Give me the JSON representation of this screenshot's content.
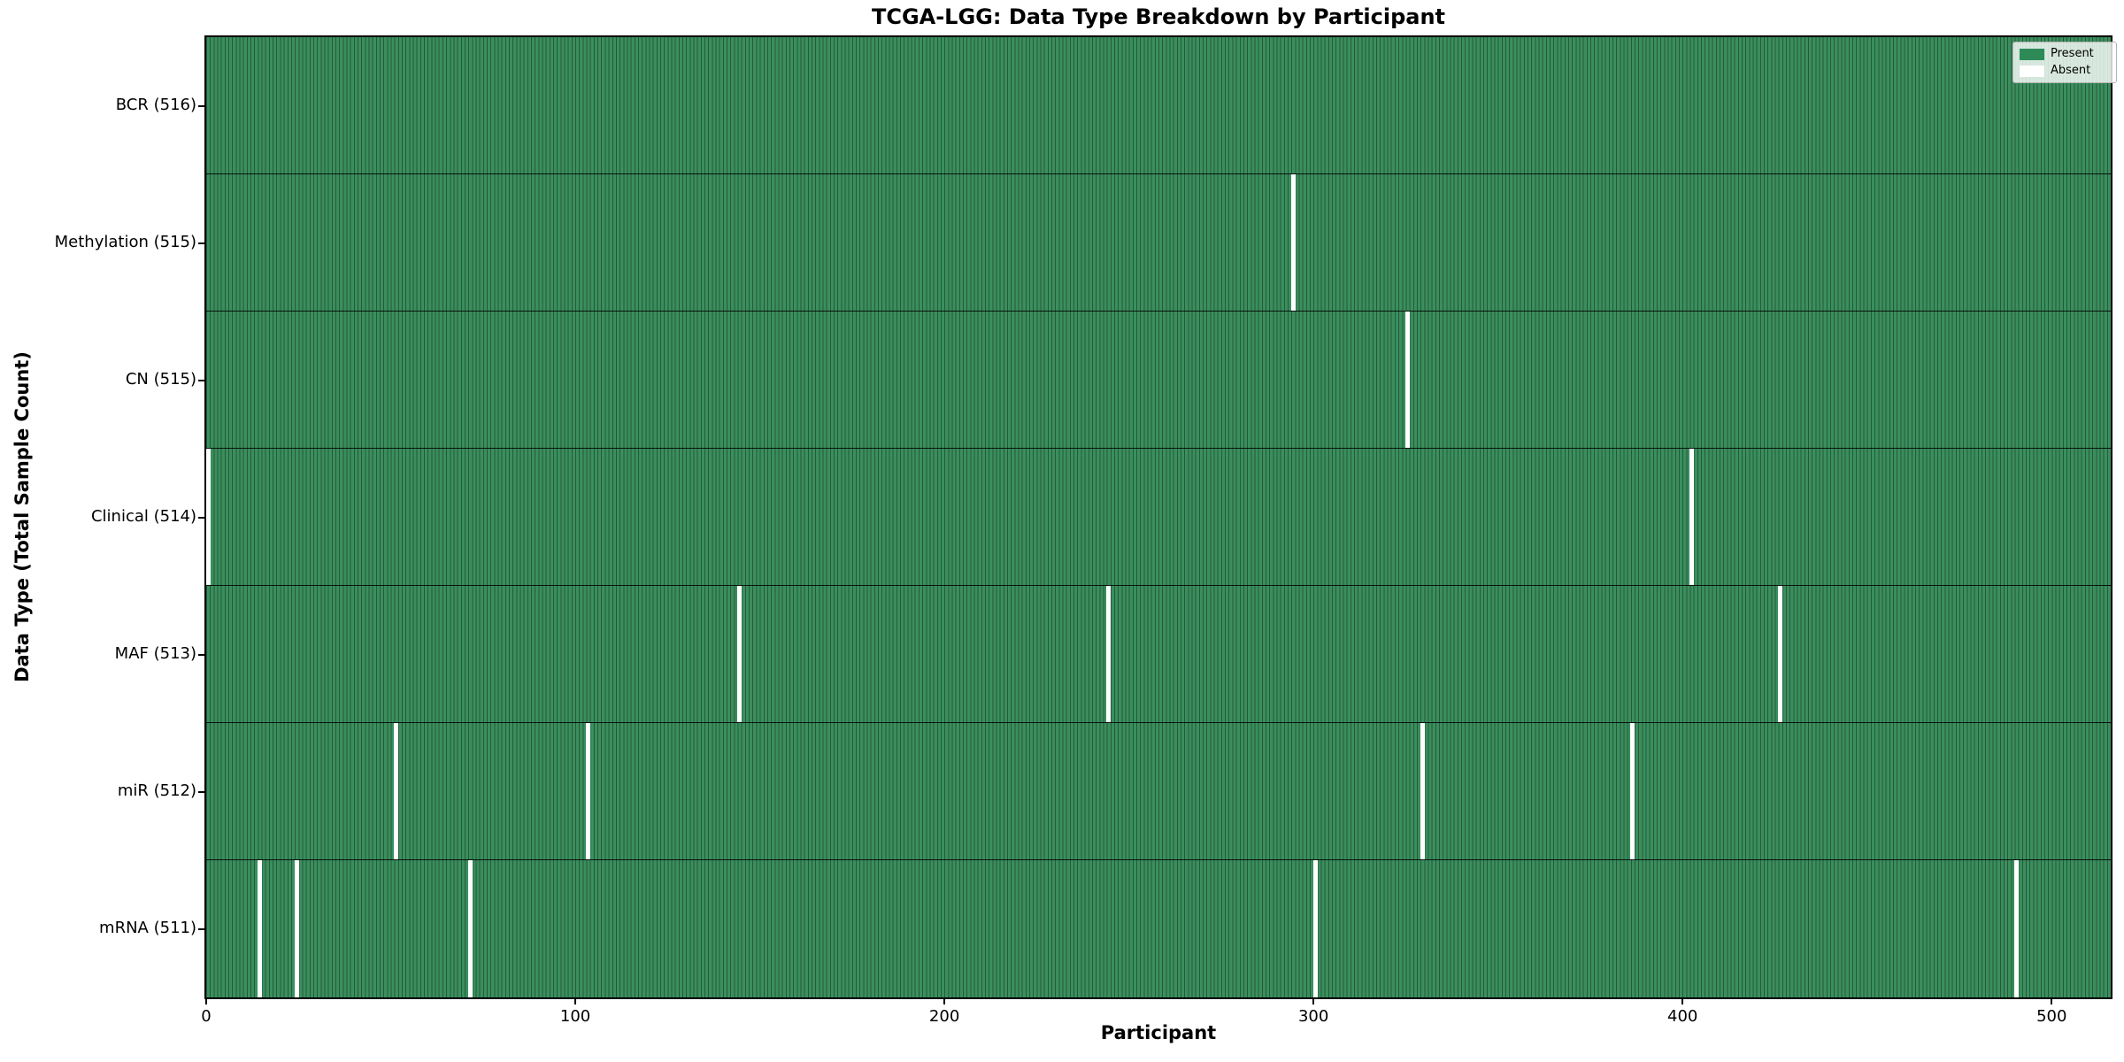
{
  "title": "TCGA-LGG: Data Type Breakdown by Participant",
  "xlabel": "Participant",
  "ylabel": "Data Type (Total Sample Count)",
  "legend": [
    {
      "label": "Present",
      "color": "#2e8b57"
    },
    {
      "label": "Absent",
      "color": "#ffffff"
    }
  ],
  "chart_data": {
    "type": "heatmap",
    "title": "TCGA-LGG: Data Type Breakdown by Participant",
    "xlabel": "Participant",
    "ylabel": "Data Type (Total Sample Count)",
    "n_participants": 516,
    "x_range": [
      0,
      516
    ],
    "x_ticks": [
      0,
      100,
      200,
      300,
      400,
      500
    ],
    "grid": false,
    "legend_position": "upper right",
    "legend_entries": [
      "Present",
      "Absent"
    ],
    "rows": [
      {
        "name": "bcr",
        "label": "BCR (516)",
        "count": 516,
        "absent_participants": []
      },
      {
        "name": "methylation",
        "label": "Methylation (515)",
        "count": 515,
        "absent_participants": [
          294
        ]
      },
      {
        "name": "cn",
        "label": "CN (515)",
        "count": 515,
        "absent_participants": [
          325
        ]
      },
      {
        "name": "clinical",
        "label": "Clinical (514)",
        "count": 514,
        "absent_participants": [
          0,
          402
        ]
      },
      {
        "name": "maf",
        "label": "MAF (513)",
        "count": 513,
        "absent_participants": [
          144,
          244,
          426
        ]
      },
      {
        "name": "mir",
        "label": "miR (512)",
        "count": 512,
        "absent_participants": [
          51,
          103,
          329,
          386
        ]
      },
      {
        "name": "mrna",
        "label": "mRNA (511)",
        "count": 511,
        "absent_participants": [
          14,
          24,
          71,
          300,
          490
        ]
      }
    ],
    "colors": {
      "present": "#3a8f5d",
      "present_edge": "#26593c",
      "absent": "#ffffff",
      "legend_present": "#2e8b57"
    }
  }
}
